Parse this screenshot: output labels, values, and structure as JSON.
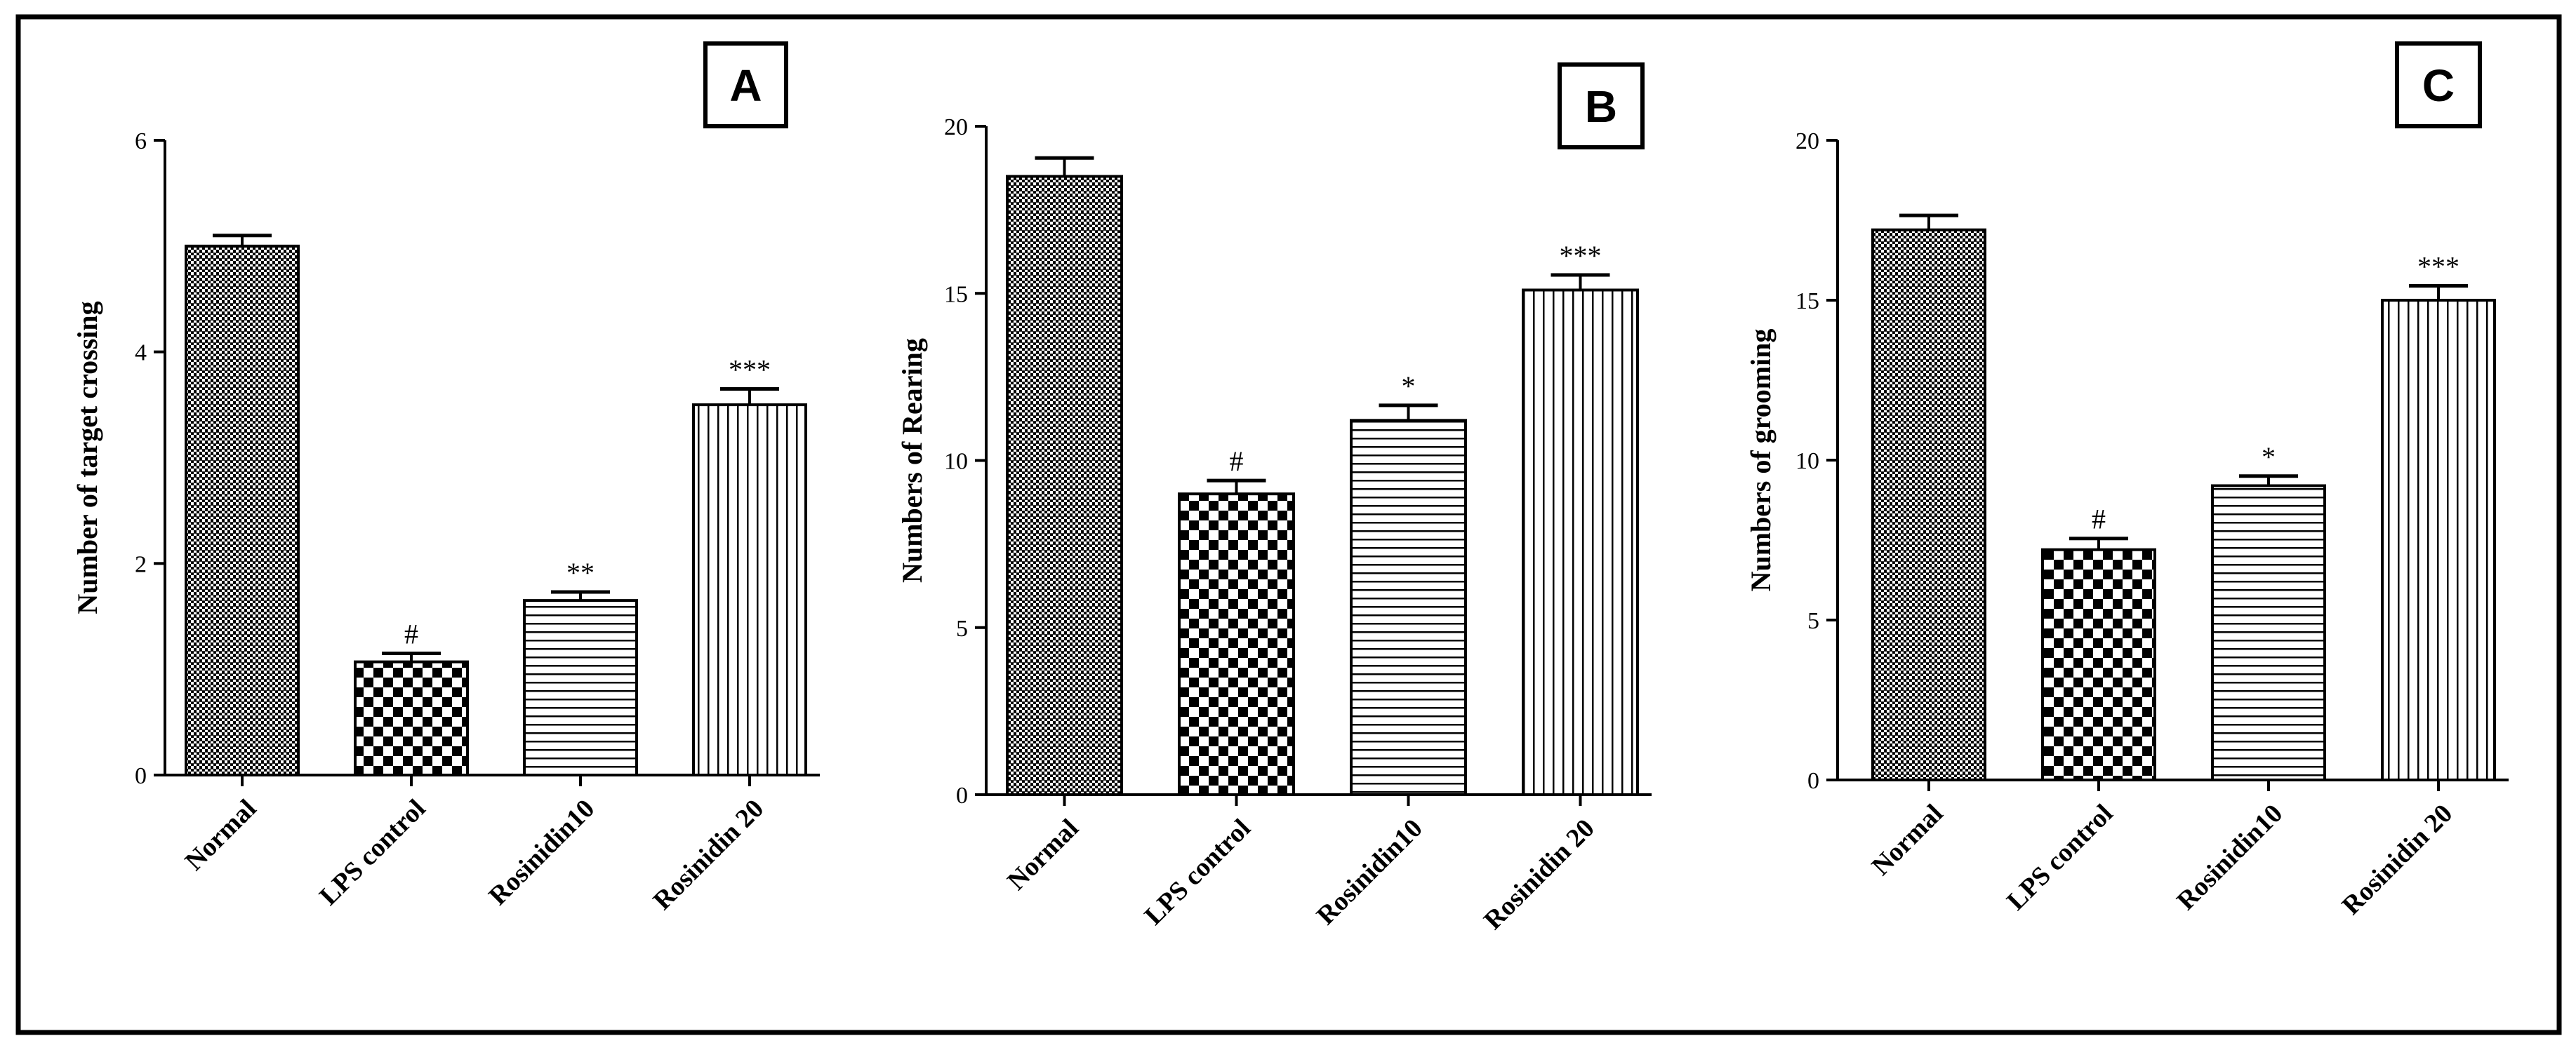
{
  "figure": {
    "panels_count": 3
  },
  "chart_data": [
    {
      "type": "bar",
      "panel_label": "A",
      "ylabel": "Number of target crossing",
      "categories": [
        "Normal",
        "LPS control",
        "Rosinidin10",
        "Rosinidin 20"
      ],
      "values": [
        5.0,
        1.07,
        1.65,
        3.5
      ],
      "errors": [
        0.1,
        0.08,
        0.08,
        0.15
      ],
      "significance": [
        "",
        "#",
        "**",
        "***"
      ],
      "patterns": [
        "dense-check",
        "checker",
        "horizontal",
        "vertical"
      ],
      "ylim": [
        0,
        6
      ],
      "yticks": [
        "0",
        "2",
        "4",
        "6"
      ]
    },
    {
      "type": "bar",
      "panel_label": "B",
      "ylabel": "Numbers of Rearing",
      "categories": [
        "Normal",
        "LPS control",
        "Rosinidin10",
        "Rosinidin 20"
      ],
      "values": [
        18.5,
        9.0,
        11.2,
        15.1
      ],
      "errors": [
        0.55,
        0.4,
        0.45,
        0.45
      ],
      "significance": [
        "",
        "#",
        "*",
        "***"
      ],
      "patterns": [
        "dense-check",
        "checker",
        "horizontal",
        "vertical"
      ],
      "ylim": [
        0,
        20
      ],
      "yticks": [
        "0",
        "5",
        "10",
        "15",
        "20"
      ]
    },
    {
      "type": "bar",
      "panel_label": "C",
      "ylabel": "Numbers of grooming",
      "categories": [
        "Normal",
        "LPS control",
        "Rosinidin10",
        "Rosinidin 20"
      ],
      "values": [
        17.2,
        7.2,
        9.2,
        15.0
      ],
      "errors": [
        0.45,
        0.35,
        0.3,
        0.45
      ],
      "significance": [
        "",
        "#",
        "*",
        "***"
      ],
      "patterns": [
        "dense-check",
        "checker",
        "horizontal",
        "vertical"
      ],
      "ylim": [
        0,
        20
      ],
      "yticks": [
        "0",
        "5",
        "10",
        "15",
        "20"
      ]
    }
  ]
}
